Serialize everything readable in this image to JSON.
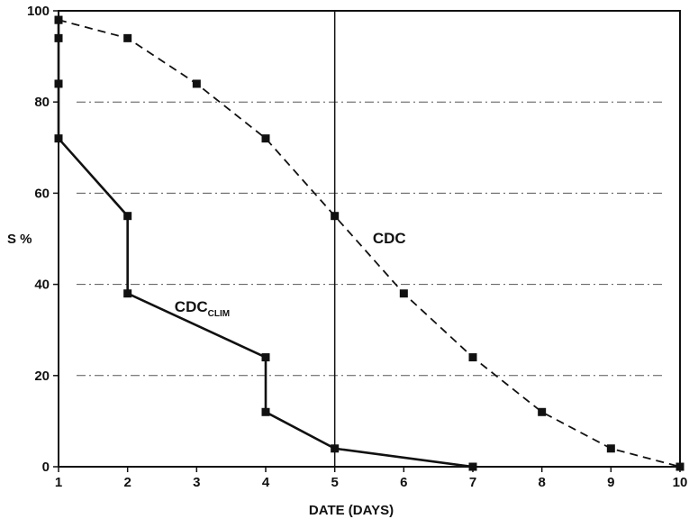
{
  "chart_data": {
    "type": "line",
    "title": "",
    "xlabel": "DATE (DAYS)",
    "ylabel": "S %",
    "xlim": [
      1,
      10
    ],
    "ylim": [
      0,
      100
    ],
    "x_ticks": [
      1,
      2,
      3,
      4,
      5,
      6,
      7,
      8,
      9,
      10
    ],
    "y_ticks": [
      0,
      20,
      40,
      60,
      80,
      100
    ],
    "gridlines_y": [
      20,
      40,
      60,
      80
    ],
    "grid_style": "dash-dot",
    "vertical_marker_x": 5,
    "series": [
      {
        "name": "CDC",
        "line_style": "dashed",
        "marker": "square",
        "color": "#111111",
        "label_anchor": {
          "x": 5.55,
          "y": 49
        },
        "points": [
          {
            "x": 1,
            "y": 98
          },
          {
            "x": 2,
            "y": 94
          },
          {
            "x": 3,
            "y": 84
          },
          {
            "x": 4,
            "y": 72
          },
          {
            "x": 5,
            "y": 55
          },
          {
            "x": 6,
            "y": 38
          },
          {
            "x": 7,
            "y": 24
          },
          {
            "x": 8,
            "y": 12
          },
          {
            "x": 9,
            "y": 4
          },
          {
            "x": 10,
            "y": 0
          }
        ]
      },
      {
        "name": "CDC",
        "name_subscript": "CLIM",
        "line_style": "solid",
        "marker": "square",
        "color": "#111111",
        "label_anchor": {
          "x": 2.68,
          "y": 34
        },
        "points": [
          {
            "x": 1,
            "y": 98
          },
          {
            "x": 1,
            "y": 94
          },
          {
            "x": 1,
            "y": 84
          },
          {
            "x": 1,
            "y": 72
          },
          {
            "x": 2,
            "y": 55
          },
          {
            "x": 2,
            "y": 38
          },
          {
            "x": 4,
            "y": 24
          },
          {
            "x": 4,
            "y": 12
          },
          {
            "x": 5,
            "y": 4
          },
          {
            "x": 7,
            "y": 0
          }
        ]
      }
    ]
  }
}
